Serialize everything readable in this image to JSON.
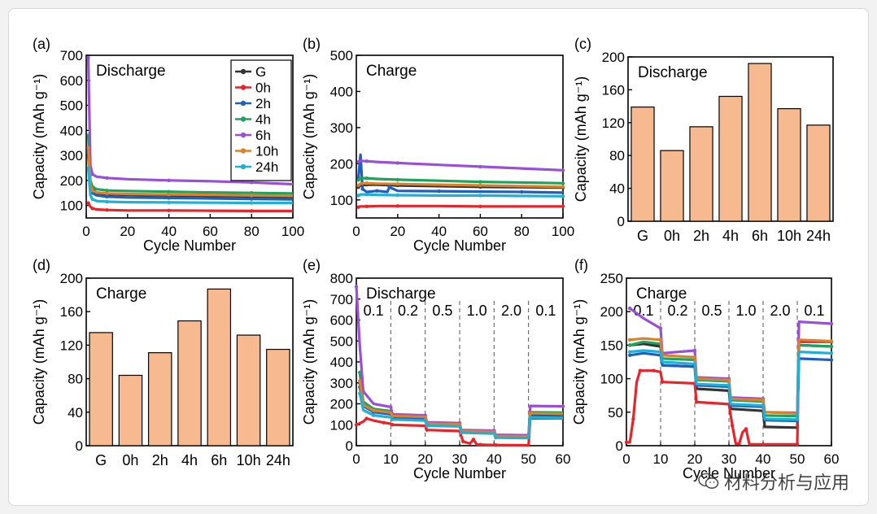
{
  "chart_data": [
    {
      "id": "a",
      "panel_label": "(a)",
      "type": "line",
      "title": "Discharge",
      "xlabel": "Cycle Number",
      "ylabel": "Capacity (mAh g⁻¹)",
      "xlim": [
        0,
        100
      ],
      "ylim": [
        50,
        700
      ],
      "xticks": [
        "0",
        "20",
        "40",
        "60",
        "80",
        "100"
      ],
      "yticks": [
        "100",
        "200",
        "300",
        "400",
        "500",
        "600",
        "700"
      ],
      "legend": [
        "G",
        "0h",
        "2h",
        "4h",
        "6h",
        "10h",
        "24h"
      ],
      "series": [
        {
          "name": "G",
          "color": "#333333",
          "x": [
            1,
            2,
            3,
            5,
            10,
            20,
            40,
            60,
            80,
            100
          ],
          "values": [
            300,
            190,
            165,
            150,
            145,
            142,
            140,
            138,
            136,
            134
          ]
        },
        {
          "name": "0h",
          "color": "#e8242a",
          "x": [
            1,
            2,
            3,
            5,
            10,
            20,
            40,
            60,
            80,
            100
          ],
          "values": [
            110,
            95,
            88,
            84,
            82,
            80,
            80,
            79,
            78,
            78
          ]
        },
        {
          "name": "2h",
          "color": "#1f5fbf",
          "x": [
            1,
            2,
            3,
            5,
            10,
            20,
            40,
            60,
            80,
            100
          ],
          "values": [
            320,
            170,
            150,
            140,
            135,
            132,
            130,
            128,
            126,
            124
          ]
        },
        {
          "name": "4h",
          "color": "#1fa35c",
          "x": [
            1,
            2,
            3,
            5,
            10,
            20,
            40,
            60,
            80,
            100
          ],
          "values": [
            380,
            200,
            175,
            165,
            160,
            158,
            155,
            152,
            150,
            148
          ]
        },
        {
          "name": "6h",
          "color": "#9b4fd6",
          "x": [
            1,
            2,
            3,
            5,
            10,
            20,
            40,
            60,
            80,
            100
          ],
          "values": [
            690,
            260,
            225,
            215,
            210,
            205,
            200,
            197,
            192,
            185
          ]
        },
        {
          "name": "10h",
          "color": "#d9822b",
          "x": [
            1,
            2,
            3,
            5,
            10,
            20,
            40,
            60,
            80,
            100
          ],
          "values": [
            330,
            180,
            160,
            152,
            148,
            146,
            144,
            142,
            140,
            138
          ]
        },
        {
          "name": "24h",
          "color": "#1fb0d6",
          "x": [
            1,
            2,
            3,
            5,
            10,
            20,
            40,
            60,
            80,
            100
          ],
          "values": [
            250,
            140,
            125,
            118,
            115,
            113,
            112,
            111,
            110,
            110
          ]
        }
      ]
    },
    {
      "id": "b",
      "panel_label": "(b)",
      "type": "line",
      "title": "Charge",
      "xlabel": "Cycle Number",
      "ylabel": "Capacity (mAh g⁻¹)",
      "xlim": [
        0,
        100
      ],
      "ylim": [
        50,
        500
      ],
      "xticks": [
        "0",
        "20",
        "40",
        "60",
        "80",
        "100"
      ],
      "yticks": [
        "100",
        "200",
        "300",
        "400",
        "500"
      ],
      "series": [
        {
          "name": "G",
          "color": "#333333",
          "x": [
            1,
            2,
            5,
            10,
            20,
            40,
            60,
            80,
            100
          ],
          "values": [
            135,
            140,
            142,
            142,
            140,
            138,
            136,
            135,
            134
          ]
        },
        {
          "name": "0h",
          "color": "#e8242a",
          "x": [
            1,
            2,
            5,
            10,
            20,
            40,
            60,
            80,
            100
          ],
          "values": [
            80,
            82,
            82,
            83,
            83,
            83,
            82,
            82,
            82
          ]
        },
        {
          "name": "2h",
          "color": "#1f5fbf",
          "x": [
            1,
            2,
            3,
            5,
            10,
            15,
            16,
            20,
            40,
            60,
            80,
            100
          ],
          "values": [
            160,
            225,
            130,
            122,
            125,
            122,
            135,
            125,
            124,
            123,
            122,
            120
          ]
        },
        {
          "name": "4h",
          "color": "#1fa35c",
          "x": [
            1,
            2,
            5,
            10,
            20,
            40,
            60,
            80,
            100
          ],
          "values": [
            155,
            160,
            160,
            158,
            156,
            153,
            150,
            148,
            146
          ]
        },
        {
          "name": "6h",
          "color": "#9b4fd6",
          "x": [
            1,
            2,
            5,
            10,
            20,
            40,
            60,
            80,
            100
          ],
          "values": [
            205,
            208,
            207,
            205,
            202,
            197,
            192,
            187,
            182
          ]
        },
        {
          "name": "10h",
          "color": "#d9822b",
          "x": [
            1,
            2,
            5,
            10,
            20,
            40,
            60,
            80,
            100
          ],
          "values": [
            140,
            145,
            146,
            145,
            144,
            142,
            140,
            138,
            136
          ]
        },
        {
          "name": "24h",
          "color": "#1fb0d6",
          "x": [
            1,
            2,
            5,
            10,
            20,
            40,
            60,
            80,
            100
          ],
          "values": [
            112,
            115,
            115,
            114,
            113,
            112,
            112,
            111,
            110
          ]
        }
      ]
    },
    {
      "id": "c",
      "panel_label": "(c)",
      "type": "bar",
      "title": "Discharge",
      "ylabel": "Capacity (mAh g⁻¹)",
      "ylim": [
        0,
        200
      ],
      "yticks": [
        "0",
        "40",
        "80",
        "120",
        "160",
        "200"
      ],
      "categories": [
        "G",
        "0h",
        "2h",
        "4h",
        "6h",
        "10h",
        "24h"
      ],
      "values": [
        139,
        86,
        115,
        152,
        192,
        137,
        117
      ],
      "bar_color": "#f6b990"
    },
    {
      "id": "d",
      "panel_label": "(d)",
      "type": "bar",
      "title": "Charge",
      "ylabel": "Capacity (mAh g⁻¹)",
      "ylim": [
        0,
        200
      ],
      "yticks": [
        "0",
        "40",
        "80",
        "120",
        "160",
        "200"
      ],
      "categories": [
        "G",
        "0h",
        "2h",
        "4h",
        "6h",
        "10h",
        "24h"
      ],
      "values": [
        135,
        84,
        111,
        149,
        187,
        132,
        115
      ],
      "bar_color": "#f6b990"
    },
    {
      "id": "e",
      "panel_label": "(e)",
      "type": "line",
      "title": "Discharge",
      "xlabel": "Cycle Number",
      "ylabel": "Capacity (mAh g⁻¹)",
      "xlim": [
        0,
        60
      ],
      "ylim": [
        0,
        800
      ],
      "xticks": [
        "0",
        "10",
        "20",
        "30",
        "40",
        "50",
        "60"
      ],
      "yticks": [
        "0",
        "100",
        "200",
        "300",
        "400",
        "500",
        "600",
        "700",
        "800"
      ],
      "rate_labels": [
        "0.1",
        "0.2",
        "0.5",
        "1.0",
        "2.0",
        "0.1"
      ],
      "dividers": [
        10,
        20,
        30,
        40,
        50
      ],
      "series": [
        {
          "name": "G",
          "color": "#333333",
          "x": [
            1,
            2,
            5,
            10,
            10.5,
            20,
            20.5,
            30,
            30.5,
            40,
            40.5,
            50,
            50.5,
            60
          ],
          "values": [
            300,
            200,
            170,
            160,
            140,
            135,
            105,
            100,
            70,
            66,
            45,
            43,
            150,
            148
          ]
        },
        {
          "name": "0h",
          "color": "#e8242a",
          "x": [
            0,
            2,
            3,
            5,
            8,
            10,
            10.5,
            20,
            20.5,
            30,
            31,
            33,
            34,
            35,
            36,
            40,
            40.5,
            50,
            50.5,
            60
          ],
          "values": [
            100,
            115,
            130,
            120,
            110,
            105,
            100,
            95,
            75,
            70,
            20,
            10,
            30,
            5,
            5,
            3,
            3,
            2,
            130,
            130
          ]
        },
        {
          "name": "2h",
          "color": "#1f5fbf",
          "x": [
            1,
            2,
            5,
            10,
            10.5,
            20,
            20.5,
            30,
            30.5,
            40,
            40.5,
            50,
            50.5,
            60
          ],
          "values": [
            280,
            190,
            160,
            150,
            135,
            130,
            100,
            96,
            66,
            62,
            40,
            38,
            140,
            138
          ]
        },
        {
          "name": "4h",
          "color": "#1fa35c",
          "x": [
            1,
            2,
            5,
            10,
            10.5,
            20,
            20.5,
            30,
            30.5,
            40,
            40.5,
            50,
            50.5,
            60
          ],
          "values": [
            350,
            210,
            175,
            165,
            145,
            140,
            108,
            104,
            72,
            68,
            48,
            46,
            160,
            158
          ]
        },
        {
          "name": "6h",
          "color": "#9b4fd6",
          "x": [
            0,
            1,
            2,
            5,
            10,
            10.5,
            20,
            20.5,
            30,
            30.5,
            40,
            40.5,
            50,
            50.5,
            60
          ],
          "values": [
            760,
            480,
            260,
            200,
            185,
            150,
            145,
            112,
            108,
            75,
            72,
            52,
            50,
            190,
            188
          ]
        },
        {
          "name": "10h",
          "color": "#d9822b",
          "x": [
            1,
            2,
            5,
            10,
            10.5,
            20,
            20.5,
            30,
            30.5,
            40,
            40.5,
            50,
            50.5,
            60
          ],
          "values": [
            310,
            195,
            168,
            158,
            142,
            138,
            106,
            102,
            70,
            67,
            46,
            44,
            155,
            152
          ]
        },
        {
          "name": "24h",
          "color": "#1fb0d6",
          "x": [
            1,
            2,
            5,
            10,
            10.5,
            20,
            20.5,
            30,
            30.5,
            40,
            40.5,
            50,
            50.5,
            60
          ],
          "values": [
            250,
            170,
            145,
            135,
            125,
            120,
            95,
            92,
            62,
            58,
            38,
            36,
            135,
            132
          ]
        }
      ]
    },
    {
      "id": "f",
      "panel_label": "(f)",
      "type": "line",
      "title": "Charge",
      "xlabel": "Cycle Number",
      "ylabel": "Capacity (mAh g⁻¹)",
      "xlim": [
        0,
        60
      ],
      "ylim": [
        0,
        250
      ],
      "xticks": [
        "0",
        "10",
        "20",
        "30",
        "40",
        "50",
        "60"
      ],
      "yticks": [
        "0",
        "50",
        "100",
        "150",
        "200",
        "250"
      ],
      "rate_labels": [
        "0.1",
        "0.2",
        "0.5",
        "1.0",
        "2.0",
        "0.1"
      ],
      "dividers": [
        10,
        20,
        30,
        40,
        50
      ],
      "series": [
        {
          "name": "G",
          "color": "#333333",
          "x": [
            1,
            5,
            10,
            10.5,
            20,
            20.5,
            30,
            30.5,
            40,
            40.5,
            50,
            50.5,
            60
          ],
          "values": [
            150,
            152,
            148,
            120,
            118,
            85,
            82,
            55,
            52,
            28,
            27,
            150,
            148
          ]
        },
        {
          "name": "0h",
          "color": "#e8242a",
          "x": [
            0,
            1,
            2,
            3,
            4,
            5,
            8,
            10,
            10.5,
            20,
            20.5,
            30,
            31,
            32,
            33,
            34,
            35,
            36,
            40,
            40.5,
            50,
            50.5,
            60
          ],
          "values": [
            5,
            5,
            40,
            95,
            112,
            112,
            112,
            110,
            95,
            93,
            65,
            62,
            30,
            3,
            3,
            20,
            25,
            2,
            2,
            2,
            2,
            155,
            155
          ]
        },
        {
          "name": "2h",
          "color": "#1f5fbf",
          "x": [
            1,
            5,
            10,
            10.5,
            20,
            20.5,
            30,
            30.5,
            40,
            40.5,
            50,
            50.5,
            60
          ],
          "values": [
            135,
            138,
            135,
            120,
            118,
            90,
            88,
            60,
            58,
            38,
            37,
            130,
            128
          ]
        },
        {
          "name": "4h",
          "color": "#1fa35c",
          "x": [
            1,
            5,
            10,
            10.5,
            20,
            20.5,
            30,
            30.5,
            40,
            40.5,
            50,
            50.5,
            60
          ],
          "values": [
            150,
            155,
            152,
            130,
            128,
            98,
            96,
            68,
            66,
            45,
            44,
            150,
            148
          ]
        },
        {
          "name": "6h",
          "color": "#9b4fd6",
          "x": [
            1,
            5,
            10,
            10.5,
            20,
            20.5,
            30,
            30.5,
            40,
            40.5,
            50,
            50.5,
            60
          ],
          "values": [
            205,
            190,
            175,
            138,
            142,
            102,
            100,
            72,
            70,
            50,
            49,
            185,
            182
          ]
        },
        {
          "name": "10h",
          "color": "#d9822b",
          "x": [
            1,
            5,
            10,
            10.5,
            20,
            20.5,
            30,
            30.5,
            40,
            40.5,
            50,
            50.5,
            60
          ],
          "values": [
            158,
            160,
            158,
            135,
            132,
            100,
            98,
            70,
            68,
            50,
            48,
            158,
            156
          ]
        },
        {
          "name": "24h",
          "color": "#1fb0d6",
          "x": [
            1,
            5,
            10,
            10.5,
            20,
            20.5,
            30,
            30.5,
            40,
            40.5,
            50,
            50.5,
            60
          ],
          "values": [
            140,
            142,
            140,
            125,
            122,
            92,
            90,
            62,
            60,
            40,
            39,
            140,
            138
          ]
        }
      ]
    }
  ],
  "watermark": {
    "text": "材料分析与应用",
    "icon": "wechat-icon"
  }
}
